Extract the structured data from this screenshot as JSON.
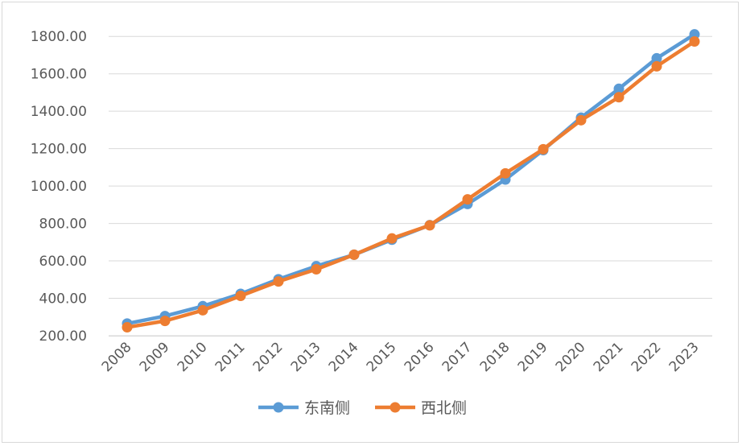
{
  "chart_data": {
    "type": "line",
    "categories": [
      "2008",
      "2009",
      "2010",
      "2011",
      "2012",
      "2013",
      "2014",
      "2015",
      "2016",
      "2017",
      "2018",
      "2019",
      "2020",
      "2021",
      "2022",
      "2023"
    ],
    "series": [
      {
        "name": "东南侧",
        "color": "#5b9bd5",
        "values": [
          265,
          305,
          358,
          424,
          502,
          572,
          633,
          713,
          791,
          904,
          1035,
          1192,
          1366,
          1520,
          1683,
          1811
        ]
      },
      {
        "name": "西北侧",
        "color": "#ed7d31",
        "values": [
          245,
          279,
          336,
          413,
          490,
          555,
          633,
          720,
          790,
          929,
          1068,
          1197,
          1352,
          1475,
          1640,
          1773
        ]
      }
    ],
    "y_ticks": [
      "200.00",
      "400.00",
      "600.00",
      "800.00",
      "1000.00",
      "1200.00",
      "1400.00",
      "1600.00",
      "1800.00"
    ],
    "ylim": [
      200,
      1900
    ],
    "grid": "horizontal",
    "legend_position": "bottom"
  }
}
